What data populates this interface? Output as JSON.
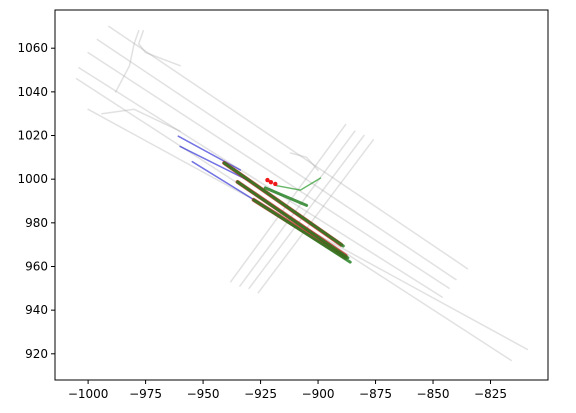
{
  "chart_data": {
    "type": "line",
    "xlim": [
      -1014.4,
      -800
    ],
    "ylim": [
      908,
      1077.5
    ],
    "xticks": [
      {
        "value": -1000,
        "label": "−1000"
      },
      {
        "value": -975,
        "label": "−975"
      },
      {
        "value": -950,
        "label": "−950"
      },
      {
        "value": -925,
        "label": "−925"
      },
      {
        "value": -900,
        "label": "−900"
      },
      {
        "value": -875,
        "label": "−875"
      },
      {
        "value": -850,
        "label": "−850"
      },
      {
        "value": -825,
        "label": "−825"
      }
    ],
    "yticks": [
      920,
      940,
      960,
      980,
      1000,
      1020,
      1040,
      1060
    ],
    "series": [
      {
        "color": "#aaaaaa",
        "alpha": 0.35,
        "linewidth": 1.5,
        "mode": "lines",
        "x": [
          -991,
          -835
        ],
        "values": [
          1070,
          959
        ]
      },
      {
        "color": "#aaaaaa",
        "alpha": 0.35,
        "linewidth": 1.5,
        "mode": "lines",
        "x": [
          -996,
          -840
        ],
        "values": [
          1064,
          954
        ]
      },
      {
        "color": "#aaaaaa",
        "alpha": 0.35,
        "linewidth": 1.5,
        "mode": "lines",
        "x": [
          -1000,
          -843
        ],
        "values": [
          1058,
          950
        ]
      },
      {
        "color": "#aaaaaa",
        "alpha": 0.35,
        "linewidth": 1.5,
        "mode": "lines",
        "x": [
          -1004,
          -846
        ],
        "values": [
          1051,
          946
        ]
      },
      {
        "color": "#aaaaaa",
        "alpha": 0.35,
        "linewidth": 1.5,
        "mode": "lines",
        "x": [
          -1005,
          -816
        ],
        "values": [
          1046,
          917
        ]
      },
      {
        "color": "#aaaaaa",
        "alpha": 0.35,
        "linewidth": 1.5,
        "mode": "lines",
        "x": [
          -1000,
          -809
        ],
        "values": [
          1032,
          922
        ]
      },
      {
        "color": "#aaaaaa",
        "alpha": 0.35,
        "linewidth": 1.5,
        "mode": "lines",
        "x": [
          -994,
          -980,
          -960
        ],
        "values": [
          1030,
          1032,
          1022
        ]
      },
      {
        "color": "#aaaaaa",
        "alpha": 0.35,
        "linewidth": 1.5,
        "mode": "lines",
        "x": [
          -988,
          -982,
          -980,
          -978
        ],
        "values": [
          1040,
          1052,
          1062,
          1068
        ]
      },
      {
        "color": "#aaaaaa",
        "alpha": 0.35,
        "linewidth": 1.5,
        "mode": "lines",
        "x": [
          -976,
          -978,
          -975,
          -960
        ],
        "values": [
          1068,
          1062,
          1058,
          1052
        ]
      },
      {
        "color": "#aaaaaa",
        "alpha": 0.35,
        "linewidth": 1.5,
        "mode": "lines",
        "x": [
          -938,
          -888
        ],
        "values": [
          953,
          1025
        ]
      },
      {
        "color": "#aaaaaa",
        "alpha": 0.35,
        "linewidth": 1.5,
        "mode": "lines",
        "x": [
          -934,
          -884
        ],
        "values": [
          951,
          1022
        ]
      },
      {
        "color": "#aaaaaa",
        "alpha": 0.35,
        "linewidth": 1.5,
        "mode": "lines",
        "x": [
          -930,
          -880
        ],
        "values": [
          950,
          1020
        ]
      },
      {
        "color": "#aaaaaa",
        "alpha": 0.35,
        "linewidth": 1.5,
        "mode": "lines",
        "x": [
          -926,
          -876
        ],
        "values": [
          948,
          1018
        ]
      },
      {
        "color": "#aaaaaa",
        "alpha": 0.35,
        "linewidth": 1.5,
        "mode": "lines",
        "x": [
          -912,
          -905,
          -900
        ],
        "values": [
          1012,
          1010,
          1004
        ]
      },
      {
        "color": "#0000cc",
        "alpha": 0.55,
        "linewidth": 1.5,
        "mode": "lines",
        "x": [
          -960.8,
          -933.8
        ],
        "values": [
          1019.7,
          1004.2
        ]
      },
      {
        "color": "#0000cc",
        "alpha": 0.55,
        "linewidth": 1.5,
        "mode": "lines",
        "x": [
          -960,
          -929.5
        ],
        "values": [
          1015,
          999
        ]
      },
      {
        "color": "#0000cc",
        "alpha": 0.55,
        "linewidth": 1.5,
        "mode": "lines",
        "x": [
          -954.7,
          -927
        ],
        "values": [
          1008,
          990
        ]
      },
      {
        "color": "#cc2222",
        "alpha": 0.8,
        "linewidth": 4,
        "mode": "lines",
        "x": [
          -940.8,
          -890
        ],
        "values": [
          1007.4,
          970
        ]
      },
      {
        "color": "#cc2222",
        "alpha": 0.8,
        "linewidth": 4,
        "mode": "lines",
        "x": [
          -935,
          -888
        ],
        "values": [
          998.7,
          965
        ]
      },
      {
        "color": "#cc2222",
        "alpha": 0.8,
        "linewidth": 4,
        "mode": "lines",
        "x": [
          -928,
          -888
        ],
        "values": [
          990.5,
          964
        ]
      },
      {
        "color": "#1a7a1a",
        "alpha": 0.8,
        "linewidth": 3,
        "mode": "lines",
        "x": [
          -940.8,
          -889
        ],
        "values": [
          1007.4,
          969.4
        ]
      },
      {
        "color": "#1a7a1a",
        "alpha": 0.8,
        "linewidth": 3,
        "mode": "lines",
        "x": [
          -935,
          -887
        ],
        "values": [
          998.7,
          964
        ]
      },
      {
        "color": "#1a7a1a",
        "alpha": 0.8,
        "linewidth": 3,
        "mode": "lines",
        "x": [
          -928,
          -886
        ],
        "values": [
          990.5,
          962
        ]
      },
      {
        "color": "#1a7a1a",
        "alpha": 0.8,
        "linewidth": 3,
        "mode": "lines",
        "x": [
          -923,
          -905
        ],
        "values": [
          996,
          988
        ]
      },
      {
        "color": "#2a9a2a",
        "alpha": 0.7,
        "linewidth": 1.5,
        "mode": "lines",
        "x": [
          -918,
          -907.7,
          -899
        ],
        "values": [
          997,
          995,
          1000.5
        ]
      },
      {
        "color": "#ee0000",
        "alpha": 0.9,
        "linewidth": 1,
        "mode": "markers",
        "x": [
          -922,
          -920.5,
          -918.6
        ],
        "values": [
          999.6,
          998.6,
          997.8
        ]
      }
    ]
  }
}
